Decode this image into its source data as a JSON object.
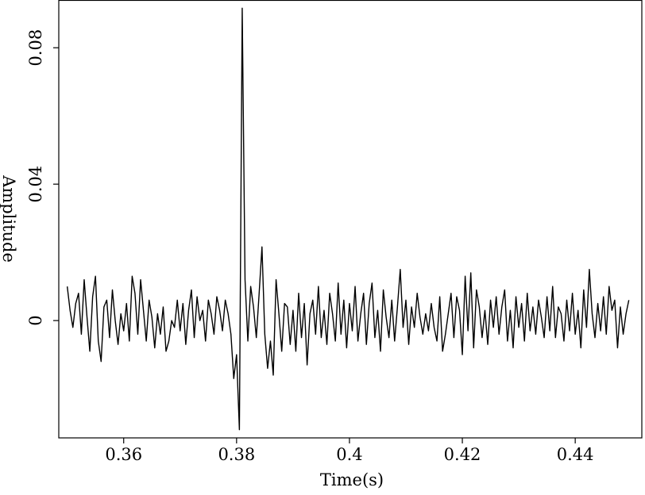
{
  "chart_data": {
    "type": "line",
    "xlabel": "Time(s)",
    "ylabel": "Amplitude",
    "xlim": [
      0.3485,
      0.4518
    ],
    "ylim": [
      -0.0344,
      0.094
    ],
    "xticks": [
      0.36,
      0.38,
      0.4,
      0.42,
      0.44
    ],
    "yticks": [
      0,
      0.04,
      0.08
    ],
    "series": [
      {
        "color": "#000000",
        "x": [
          0.35,
          0.3505,
          0.351,
          0.3515,
          0.352,
          0.3525,
          0.353,
          0.3535,
          0.354,
          0.3545,
          0.355,
          0.3555,
          0.356,
          0.3565,
          0.357,
          0.3575,
          0.358,
          0.3585,
          0.359,
          0.3595,
          0.36,
          0.3605,
          0.361,
          0.3615,
          0.362,
          0.3625,
          0.363,
          0.3635,
          0.364,
          0.3645,
          0.365,
          0.3655,
          0.366,
          0.3665,
          0.367,
          0.3675,
          0.368,
          0.3685,
          0.369,
          0.3695,
          0.37,
          0.3705,
          0.371,
          0.3715,
          0.372,
          0.3725,
          0.373,
          0.3735,
          0.374,
          0.3745,
          0.375,
          0.3755,
          0.376,
          0.3765,
          0.377,
          0.3775,
          0.378,
          0.3785,
          0.379,
          0.3795,
          0.38,
          0.3805,
          0.381,
          0.3815,
          0.382,
          0.3825,
          0.383,
          0.3835,
          0.384,
          0.3845,
          0.385,
          0.3855,
          0.386,
          0.3865,
          0.387,
          0.3875,
          0.388,
          0.3885,
          0.389,
          0.3895,
          0.39,
          0.3905,
          0.391,
          0.3915,
          0.392,
          0.3925,
          0.393,
          0.3935,
          0.394,
          0.3945,
          0.395,
          0.3955,
          0.396,
          0.3965,
          0.397,
          0.3975,
          0.398,
          0.3985,
          0.399,
          0.3995,
          0.4,
          0.4005,
          0.401,
          0.4015,
          0.402,
          0.4025,
          0.403,
          0.4035,
          0.404,
          0.4045,
          0.405,
          0.4055,
          0.406,
          0.4065,
          0.407,
          0.4075,
          0.408,
          0.4085,
          0.409,
          0.4095,
          0.41,
          0.4105,
          0.411,
          0.4115,
          0.412,
          0.4125,
          0.413,
          0.4135,
          0.414,
          0.4145,
          0.415,
          0.4155,
          0.416,
          0.4165,
          0.417,
          0.4175,
          0.418,
          0.4185,
          0.419,
          0.4195,
          0.42,
          0.4205,
          0.421,
          0.4215,
          0.422,
          0.4225,
          0.423,
          0.4235,
          0.424,
          0.4245,
          0.425,
          0.4255,
          0.426,
          0.4265,
          0.427,
          0.4275,
          0.428,
          0.4285,
          0.429,
          0.4295,
          0.43,
          0.4305,
          0.431,
          0.4315,
          0.432,
          0.4325,
          0.433,
          0.4335,
          0.434,
          0.4345,
          0.435,
          0.4355,
          0.436,
          0.4365,
          0.437,
          0.4375,
          0.438,
          0.4385,
          0.439,
          0.4395,
          0.44,
          0.4405,
          0.441,
          0.4415,
          0.442,
          0.4425,
          0.443,
          0.4435,
          0.444,
          0.4445,
          0.445,
          0.4455,
          0.446,
          0.4465,
          0.447,
          0.4475,
          0.448,
          0.4485,
          0.449,
          0.4495
        ],
        "values": [
          0.01,
          0.003,
          -0.002,
          0.005,
          0.008,
          -0.004,
          0.012,
          0.001,
          -0.009,
          0.007,
          0.013,
          -0.006,
          -0.012,
          0.004,
          0.006,
          -0.005,
          0.009,
          0.0,
          -0.007,
          0.002,
          -0.003,
          0.005,
          -0.006,
          0.013,
          0.008,
          -0.004,
          0.012,
          0.003,
          -0.006,
          0.006,
          0.001,
          -0.008,
          0.002,
          -0.004,
          0.004,
          -0.009,
          -0.006,
          0.0,
          -0.002,
          0.006,
          -0.003,
          0.005,
          -0.007,
          0.003,
          0.009,
          -0.005,
          0.007,
          0.0,
          0.003,
          -0.006,
          0.006,
          0.002,
          -0.004,
          0.007,
          0.003,
          -0.003,
          0.006,
          0.002,
          -0.004,
          -0.017,
          -0.01,
          -0.032,
          0.0916,
          0.012,
          -0.006,
          0.01,
          0.004,
          -0.005,
          0.008,
          0.0216,
          -0.004,
          -0.014,
          -0.006,
          -0.016,
          0.012,
          0.002,
          -0.009,
          0.005,
          0.004,
          -0.007,
          0.003,
          -0.009,
          0.008,
          -0.005,
          0.005,
          -0.013,
          0.002,
          0.006,
          -0.004,
          0.01,
          -0.005,
          0.003,
          -0.007,
          0.008,
          0.002,
          -0.006,
          0.011,
          -0.004,
          0.006,
          -0.008,
          0.005,
          -0.003,
          0.01,
          -0.006,
          0.002,
          0.008,
          -0.007,
          0.005,
          0.011,
          -0.005,
          0.003,
          -0.009,
          0.009,
          0.001,
          -0.005,
          0.006,
          -0.006,
          0.004,
          0.015,
          -0.002,
          0.006,
          -0.007,
          0.004,
          -0.002,
          0.008,
          0.001,
          -0.004,
          0.002,
          -0.003,
          0.005,
          -0.002,
          -0.006,
          0.007,
          -0.009,
          -0.004,
          0.002,
          0.008,
          -0.005,
          0.007,
          0.003,
          -0.01,
          0.013,
          -0.003,
          0.014,
          -0.008,
          0.009,
          0.004,
          -0.005,
          0.003,
          -0.007,
          0.006,
          -0.002,
          0.007,
          -0.004,
          0.004,
          0.009,
          -0.006,
          0.003,
          -0.008,
          0.007,
          -0.002,
          0.005,
          -0.006,
          0.008,
          -0.003,
          0.004,
          -0.004,
          0.006,
          0.001,
          -0.005,
          0.007,
          -0.003,
          0.01,
          -0.005,
          0.004,
          0.002,
          -0.006,
          0.006,
          -0.003,
          0.008,
          -0.004,
          0.003,
          -0.008,
          0.009,
          -0.002,
          0.015,
          0.002,
          -0.005,
          0.005,
          -0.003,
          0.007,
          -0.004,
          0.01,
          0.003,
          0.006,
          -0.008,
          0.004,
          -0.004,
          0.002,
          0.006
        ]
      }
    ]
  }
}
